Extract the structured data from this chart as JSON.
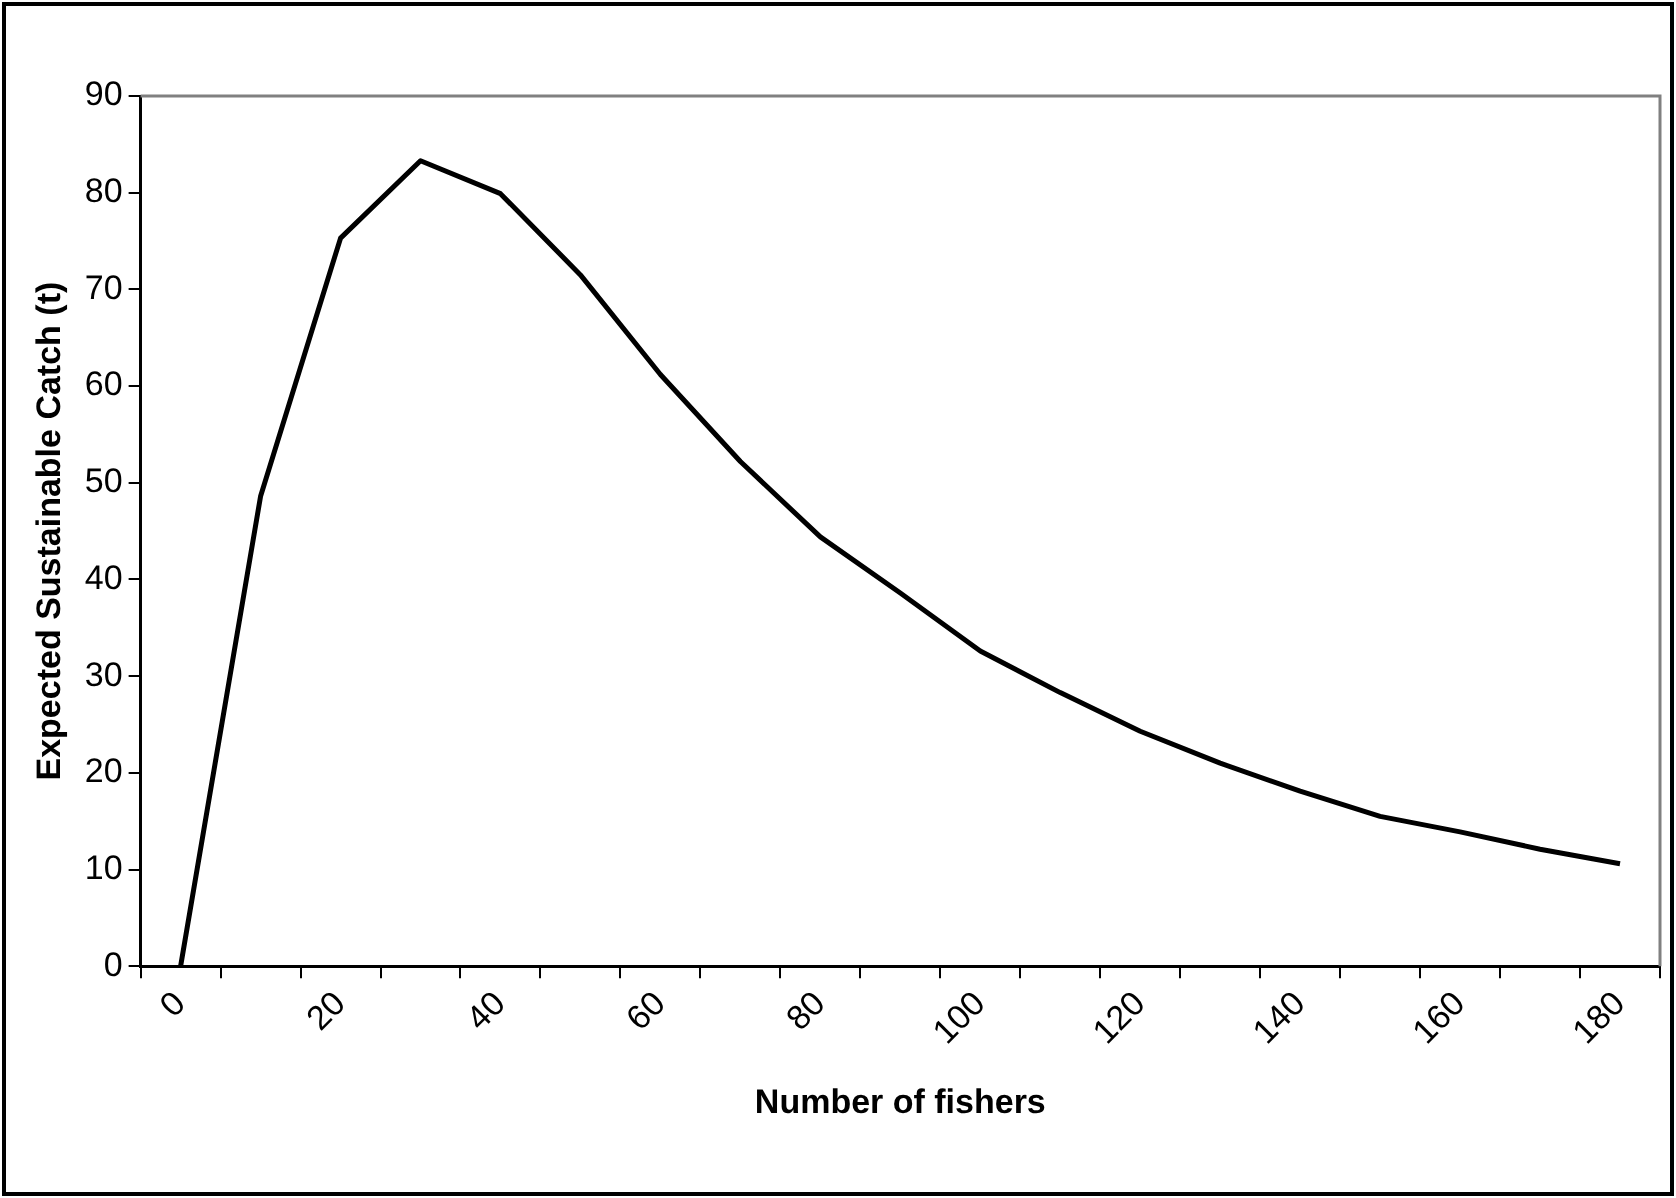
{
  "chart_data": {
    "type": "line",
    "xlabel": "Number of fishers",
    "ylabel": "Expected Sustainable Catch (t)",
    "categories": [
      "0",
      null,
      "20",
      null,
      "40",
      null,
      "60",
      null,
      "80",
      null,
      "100",
      null,
      "120",
      null,
      "140",
      null,
      "160",
      null,
      "180"
    ],
    "series": [
      {
        "color": "#000000",
        "values": [
          0,
          48.6,
          75.3,
          83.3,
          79.9,
          71.5,
          61.2,
          52.2,
          44.4,
          38.6,
          32.6,
          28.3,
          24.3,
          21.0,
          18.1,
          15.5,
          13.9,
          12.1,
          10.6
        ]
      }
    ],
    "ylim": [
      0,
      90
    ],
    "yticks": [
      0,
      10,
      20,
      30,
      40,
      50,
      60,
      70,
      80,
      90
    ],
    "grid": false,
    "legend": false,
    "marker": "none",
    "line_style": "solid"
  }
}
